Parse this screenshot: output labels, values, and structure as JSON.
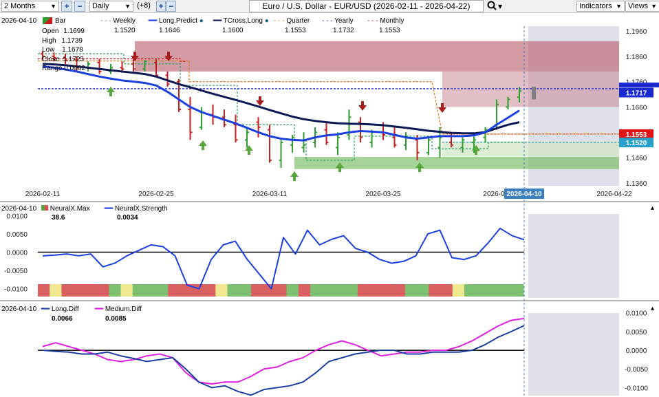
{
  "toolbar": {
    "period": "2 Months",
    "interval": "Daily",
    "plus_count": "(+8)",
    "title": "Euro / U.S. Dollar - EUR/USD (2026-02-11 - 2026-04-22)",
    "indicators": "Indicators",
    "views": "Views"
  },
  "colors": {
    "weekly": "#2e9e5b",
    "long_predict": "#1a3fe0",
    "tcross_long": "#0b1a55",
    "quarter": "#e07a20",
    "yearly": "#1a2ad0",
    "monthly": "#c8141e",
    "neural_strength": "#1a3fe0",
    "long_diff": "#1a3fa0",
    "medium_diff": "#e020e0",
    "up_candle": "#2e9e2e",
    "down_candle": "#c81e1e",
    "up_arrow": "#5aa63c",
    "down_arrow": "#a81e1e"
  },
  "main_panel": {
    "date": "2026-04-10",
    "series_label": "Bar",
    "weekly": {
      "name": "Weekly",
      "value": "1.1520"
    },
    "long_predict": {
      "name": "Long.Predict",
      "value": "1.1646"
    },
    "tcross_long": {
      "name": "TCross.Long",
      "value": "1.1600"
    },
    "quarter": {
      "name": "Quarter",
      "value": "1.1553"
    },
    "yearly": {
      "name": "Yearly",
      "value": "1.1732"
    },
    "monthly": {
      "name": "Monthly",
      "value": "1.1553"
    },
    "ohlc": [
      {
        "label": "Open",
        "value": "1.1699"
      },
      {
        "label": "High",
        "value": "1.1739"
      },
      {
        "label": "Low",
        "value": "1.1678"
      },
      {
        "label": "Close",
        "value": "1.1723"
      },
      {
        "label": "Range",
        "value": "0.0062"
      }
    ],
    "price_axis": [
      "1.1960",
      "1.1860",
      "1.1760",
      "1.1660",
      "1.1460",
      "1.1360"
    ],
    "price_tags": [
      {
        "text": "1.1717",
        "color": "#1a2ad0",
        "price": 1.1717
      },
      {
        "text": "1.1553",
        "color": "#e01414",
        "price": 1.1553
      },
      {
        "text": "1.1520",
        "color": "#2aa0c8",
        "price": 1.152
      }
    ],
    "date_axis": [
      "2026-02-11",
      "2026-02-25",
      "2026-03-11",
      "2026-03-25",
      "2026-0",
      "2026-04-22"
    ],
    "cursor_date": "2026-04-10"
  },
  "neural_panel": {
    "date": "2026-04-10",
    "max": {
      "name": "NeuralX.Max",
      "value": "38.6"
    },
    "strength": {
      "name": "NeuralX.Strength",
      "value": "0.0034"
    },
    "axis": [
      "0.0100",
      "0.0050",
      "0.0000",
      "-0.0050",
      "-0.0100"
    ]
  },
  "diff_panel": {
    "date": "2026-04-10",
    "long_diff": {
      "name": "Long.Diff",
      "value": "0.0066"
    },
    "medium_diff": {
      "name": "Medium.Diff",
      "value": "0.0085"
    },
    "axis": [
      "0.0100",
      "0.0050",
      "0.0000",
      "-0.0050",
      "-0.0100"
    ]
  },
  "chart_data": [
    {
      "type": "candlestick",
      "title": "Euro / U.S. Dollar - EUR/USD (2026-02-11 - 2026-04-22)",
      "x": [
        "2026-02-11",
        "2026-02-12",
        "2026-02-13",
        "2026-02-16",
        "2026-02-17",
        "2026-02-18",
        "2026-02-19",
        "2026-02-20",
        "2026-02-23",
        "2026-02-24",
        "2026-02-25",
        "2026-02-26",
        "2026-02-27",
        "2026-03-02",
        "2026-03-03",
        "2026-03-04",
        "2026-03-05",
        "2026-03-06",
        "2026-03-09",
        "2026-03-10",
        "2026-03-11",
        "2026-03-12",
        "2026-03-13",
        "2026-03-16",
        "2026-03-17",
        "2026-03-18",
        "2026-03-19",
        "2026-03-20",
        "2026-03-23",
        "2026-03-24",
        "2026-03-25",
        "2026-03-26",
        "2026-03-27",
        "2026-03-30",
        "2026-03-31",
        "2026-04-01",
        "2026-04-02",
        "2026-04-03",
        "2026-04-06",
        "2026-04-07",
        "2026-04-08",
        "2026-04-09",
        "2026-04-10"
      ],
      "candles": [
        [
          1.187,
          1.188,
          1.1845,
          1.186
        ],
        [
          1.186,
          1.1875,
          1.184,
          1.1855
        ],
        [
          1.1855,
          1.187,
          1.183,
          1.1845
        ],
        [
          1.1845,
          1.186,
          1.18,
          1.1815
        ],
        [
          1.1815,
          1.184,
          1.18,
          1.183
        ],
        [
          1.1835,
          1.185,
          1.179,
          1.18
        ],
        [
          1.18,
          1.183,
          1.179,
          1.1815
        ],
        [
          1.1815,
          1.184,
          1.1795,
          1.181
        ],
        [
          1.183,
          1.185,
          1.18,
          1.181
        ],
        [
          1.181,
          1.1845,
          1.18,
          1.184
        ],
        [
          1.1835,
          1.185,
          1.178,
          1.1785
        ],
        [
          1.1785,
          1.18,
          1.174,
          1.175
        ],
        [
          1.176,
          1.177,
          1.164,
          1.165
        ],
        [
          1.165,
          1.17,
          1.153,
          1.156
        ],
        [
          1.158,
          1.166,
          1.157,
          1.164
        ],
        [
          1.163,
          1.167,
          1.159,
          1.162
        ],
        [
          1.162,
          1.165,
          1.158,
          1.159
        ],
        [
          1.159,
          1.163,
          1.152,
          1.153
        ],
        [
          1.153,
          1.158,
          1.15,
          1.156
        ],
        [
          1.16,
          1.162,
          1.154,
          1.158
        ],
        [
          1.157,
          1.159,
          1.144,
          1.145
        ],
        [
          1.145,
          1.153,
          1.142,
          1.152
        ],
        [
          1.151,
          1.155,
          1.148,
          1.154
        ],
        [
          1.15,
          1.156,
          1.148,
          1.151
        ],
        [
          1.152,
          1.158,
          1.15,
          1.156
        ],
        [
          1.157,
          1.16,
          1.151,
          1.152
        ],
        [
          1.15,
          1.156,
          1.147,
          1.154
        ],
        [
          1.155,
          1.165,
          1.153,
          1.162
        ],
        [
          1.16,
          1.162,
          1.152,
          1.154
        ],
        [
          1.152,
          1.157,
          1.15,
          1.156
        ],
        [
          1.156,
          1.16,
          1.153,
          1.155
        ],
        [
          1.154,
          1.158,
          1.15,
          1.151
        ],
        [
          1.151,
          1.156,
          1.149,
          1.154
        ],
        [
          1.153,
          1.155,
          1.145,
          1.148
        ],
        [
          1.148,
          1.154,
          1.147,
          1.153
        ],
        [
          1.15,
          1.158,
          1.146,
          1.154
        ],
        [
          1.152,
          1.156,
          1.15,
          1.151
        ],
        [
          1.15,
          1.154,
          1.148,
          1.153
        ],
        [
          1.152,
          1.155,
          1.148,
          1.153
        ],
        [
          1.154,
          1.158,
          1.152,
          1.157
        ],
        [
          1.159,
          1.169,
          1.157,
          1.167
        ],
        [
          1.166,
          1.17,
          1.165,
          1.169
        ],
        [
          1.1699,
          1.1739,
          1.1678,
          1.1723
        ]
      ],
      "long_predict": [
        1.182,
        1.1815,
        1.1808,
        1.18,
        1.179,
        1.178,
        1.1772,
        1.1765,
        1.176,
        1.1755,
        1.1745,
        1.172,
        1.169,
        1.166,
        1.164,
        1.1625,
        1.161,
        1.1595,
        1.1578,
        1.156,
        1.1545,
        1.1535,
        1.153,
        1.1528,
        1.154,
        1.1548,
        1.1552,
        1.156,
        1.1565,
        1.1563,
        1.156,
        1.155,
        1.154,
        1.1535,
        1.154,
        1.1545,
        1.1545,
        1.1545,
        1.1548,
        1.156,
        1.159,
        1.1618,
        1.1646
      ],
      "tcross_long": [
        1.183,
        1.1828,
        1.1825,
        1.182,
        1.1815,
        1.181,
        1.1805,
        1.18,
        1.1795,
        1.179,
        1.178,
        1.1765,
        1.175,
        1.1738,
        1.1725,
        1.1712,
        1.17,
        1.1688,
        1.1675,
        1.1662,
        1.1648,
        1.1635,
        1.1622,
        1.1612,
        1.1605,
        1.16,
        1.1596,
        1.1594,
        1.1593,
        1.1591,
        1.1588,
        1.1583,
        1.1578,
        1.1572,
        1.1566,
        1.1562,
        1.1558,
        1.1556,
        1.1556,
        1.1561,
        1.1576,
        1.159,
        1.16
      ],
      "weekly_level": 1.152,
      "quarter_level": 1.1553,
      "yearly_level": 1.1732,
      "monthly_level": 1.1553,
      "ylim": [
        1.13,
        1.198
      ]
    },
    {
      "type": "line",
      "name": "NeuralX",
      "series": [
        {
          "name": "NeuralX.Strength",
          "values": [
            -0.001,
            -0.0008,
            -0.0005,
            -0.001,
            -0.0005,
            -0.004,
            -0.003,
            -0.001,
            0.0005,
            0.002,
            0.0015,
            -0.001,
            -0.009,
            -0.01,
            -0.002,
            0.002,
            0.003,
            -0.002,
            -0.006,
            -0.01,
            0.004,
            -0.0005,
            0.006,
            0.002,
            0.0035,
            0.0045,
            0.001,
            0.0,
            -0.002,
            -0.003,
            -0.0025,
            -0.001,
            0.005,
            0.006,
            -0.0015,
            -0.002,
            -0.001,
            0.0025,
            0.0065,
            0.0045,
            0.0034
          ]
        }
      ],
      "bands": [
        "red",
        "yellow",
        "red",
        "red",
        "red",
        "red",
        "green",
        "yellow",
        "green",
        "green",
        "green",
        "red",
        "red",
        "red",
        "red",
        "yellow",
        "green",
        "green",
        "red",
        "red",
        "red",
        "green",
        "red",
        "green",
        "green",
        "green",
        "green",
        "red",
        "red",
        "red",
        "red",
        "green",
        "green",
        "red",
        "red",
        "yellow",
        "green",
        "green",
        "green",
        "green",
        "green"
      ],
      "ylim": [
        -0.0125,
        0.0125
      ]
    },
    {
      "type": "line",
      "name": "Diff",
      "series": [
        {
          "name": "Long.Diff",
          "values": [
            0.0,
            -0.0003,
            -0.0005,
            -0.001,
            -0.001,
            -0.0005,
            -0.0015,
            -0.0022,
            -0.003,
            -0.0025,
            -0.002,
            -0.005,
            -0.0085,
            -0.01,
            -0.0095,
            -0.011,
            -0.012,
            -0.0105,
            -0.01,
            -0.0095,
            -0.0085,
            -0.006,
            -0.003,
            -0.002,
            -0.001,
            -0.0005,
            0.0,
            0.0,
            -0.001,
            -0.001,
            -0.0005,
            -0.0005,
            -0.0005,
            0.0,
            0.0015,
            0.0035,
            0.005,
            0.0066
          ]
        },
        {
          "name": "Medium.Diff",
          "values": [
            0.001,
            0.002,
            0.001,
            0.0,
            -0.001,
            -0.0025,
            -0.003,
            -0.0025,
            -0.0015,
            -0.001,
            -0.002,
            -0.006,
            -0.0085,
            -0.009,
            -0.0085,
            -0.0085,
            -0.007,
            -0.005,
            -0.0045,
            -0.003,
            -0.002,
            0.0,
            0.0015,
            0.0025,
            0.0015,
            0.0,
            -0.0015,
            -0.001,
            -0.0005,
            -0.0005,
            0.0,
            0.0,
            0.001,
            0.0025,
            0.0045,
            0.0065,
            0.008,
            0.0085
          ]
        }
      ],
      "ylim": [
        -0.0125,
        0.0105
      ]
    }
  ]
}
